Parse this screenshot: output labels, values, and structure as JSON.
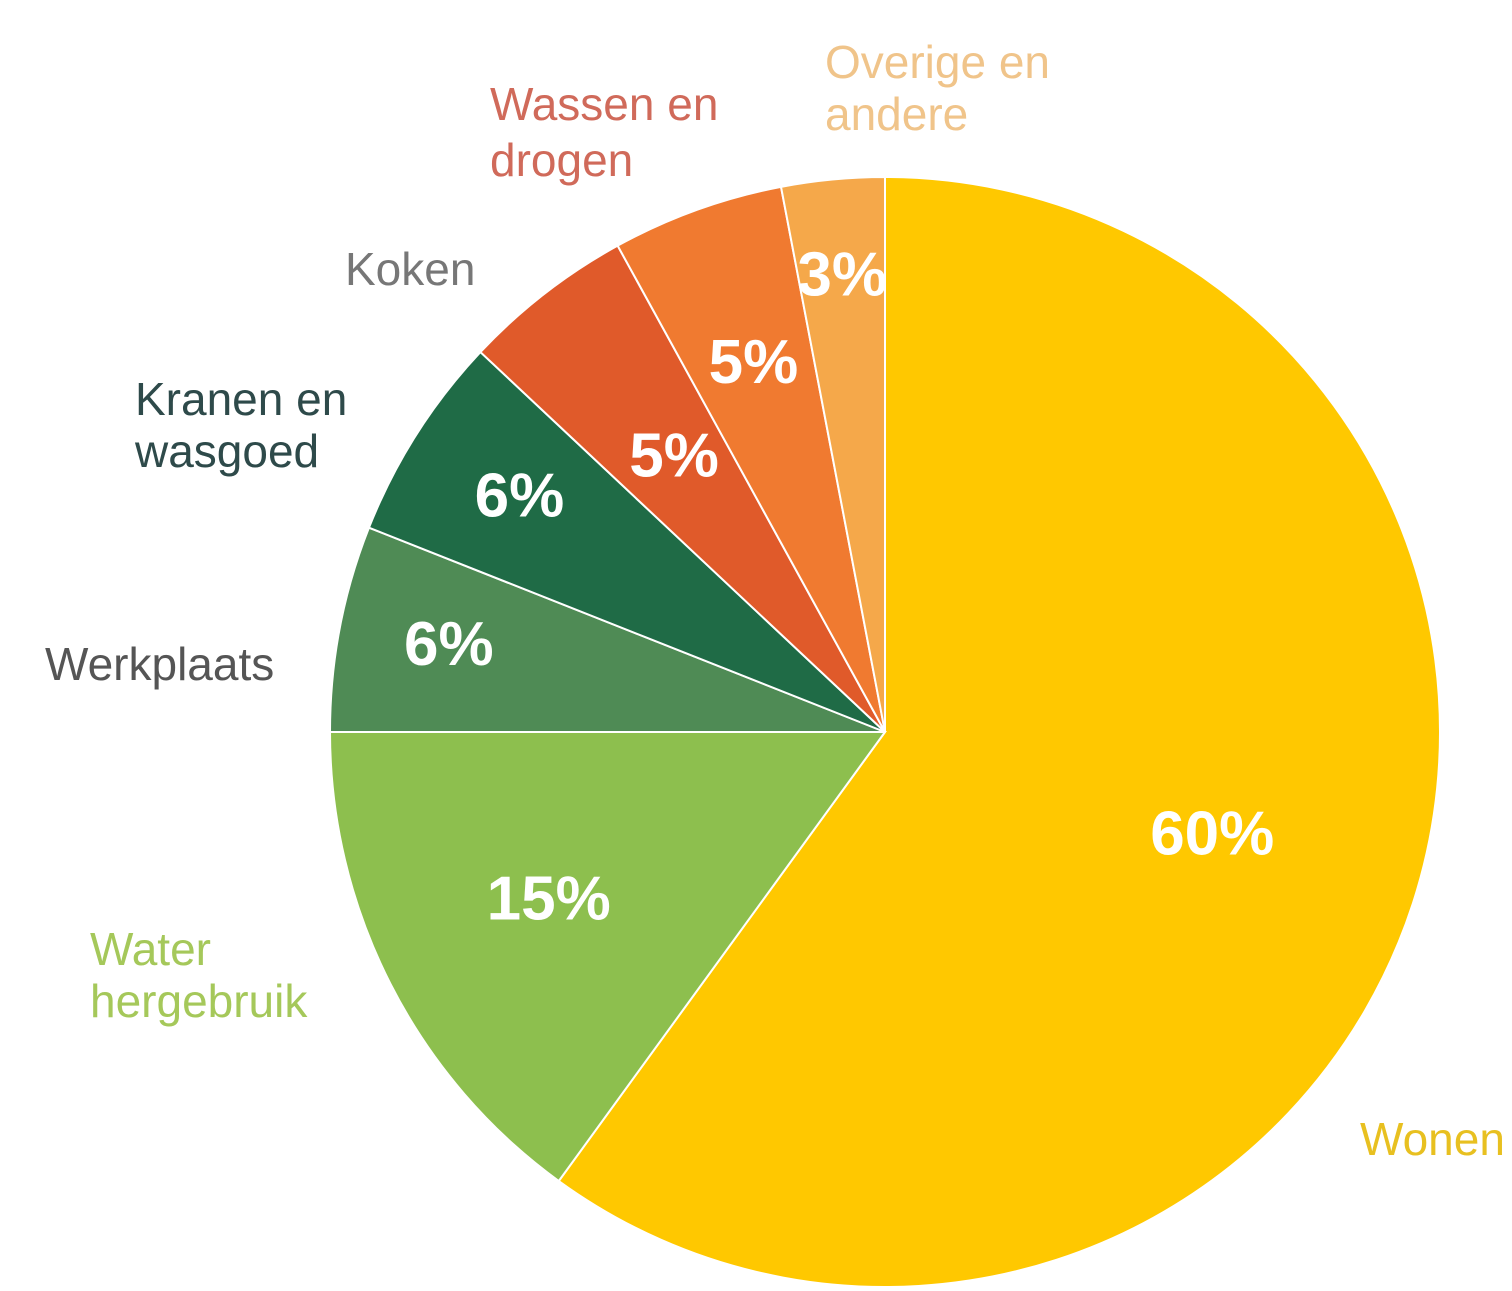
{
  "chart_data": {
    "type": "pie",
    "start_angle_deg": 0,
    "direction": "clockwise",
    "slices": [
      {
        "label": "Wonen",
        "value": 60,
        "value_label": "60%",
        "color": "#FFC800",
        "label_color": "#E8C020"
      },
      {
        "label": "Water hergebruik",
        "value": 15,
        "value_label": "15%",
        "color": "#8DBF4E",
        "label_color": "#A5C85A"
      },
      {
        "label": "Werkplaats",
        "value": 6,
        "value_label": "6%",
        "color": "#4F8B55",
        "label_color": "#555555"
      },
      {
        "label": "Kranen en wasgoed",
        "value": 6,
        "value_label": "6%",
        "color": "#1F6B46",
        "label_color": "#2E4A4A"
      },
      {
        "label": "Koken",
        "value": 5,
        "value_label": "5%",
        "color": "#E05A2A",
        "label_color": "#777777"
      },
      {
        "label": "Wassen en drogen",
        "value": 5,
        "value_label": "5%",
        "color": "#F07A30",
        "label_color": "#D06A5A"
      },
      {
        "label": "Overige en andere",
        "value": 3,
        "value_label": "3%",
        "color": "#F5A84A",
        "label_color": "#F0C48A"
      }
    ]
  }
}
